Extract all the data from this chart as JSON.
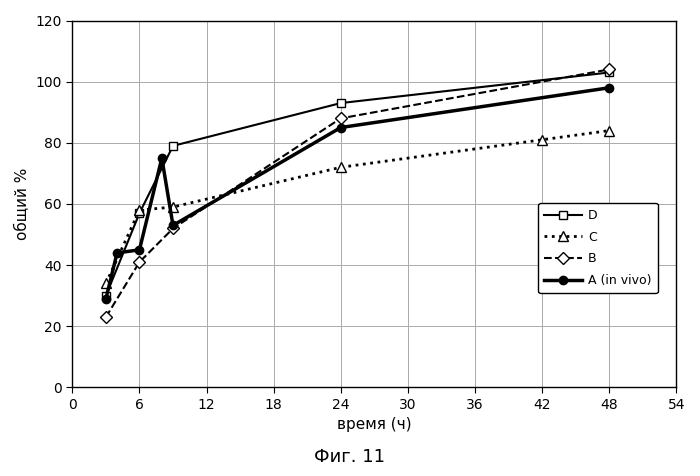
{
  "title": "Фиг. 11",
  "xlabel": "время (ч)",
  "ylabel": "общий %",
  "xlim": [
    0,
    54
  ],
  "ylim": [
    0,
    120
  ],
  "xticks": [
    0,
    6,
    12,
    18,
    24,
    30,
    36,
    42,
    48,
    54
  ],
  "yticks": [
    0,
    20,
    40,
    60,
    80,
    100,
    120
  ],
  "series": {
    "D": {
      "x": [
        3,
        6,
        9,
        24,
        48
      ],
      "y": [
        30,
        57,
        79,
        93,
        103
      ],
      "color": "#000000",
      "linestyle": "-",
      "linewidth": 1.5,
      "marker": "s",
      "markersize": 6,
      "markerfacecolor": "white",
      "markeredgecolor": "#000000"
    },
    "C": {
      "x": [
        3,
        6,
        9,
        24,
        42,
        48
      ],
      "y": [
        34,
        58,
        59,
        72,
        81,
        84
      ],
      "color": "#000000",
      "linestyle": ":",
      "linewidth": 2.0,
      "marker": "^",
      "markersize": 7,
      "markerfacecolor": "white",
      "markeredgecolor": "#000000"
    },
    "B": {
      "x": [
        3,
        6,
        9,
        24,
        48
      ],
      "y": [
        23,
        41,
        52,
        88,
        104
      ],
      "color": "#000000",
      "linestyle": "--",
      "linewidth": 1.5,
      "marker": "D",
      "markersize": 6,
      "markerfacecolor": "white",
      "markeredgecolor": "#000000"
    },
    "A (in vivo)": {
      "x": [
        3,
        4,
        6,
        8,
        9,
        24,
        48
      ],
      "y": [
        29,
        44,
        45,
        75,
        53,
        85,
        98
      ],
      "color": "#000000",
      "linestyle": "-",
      "linewidth": 2.5,
      "marker": "o",
      "markersize": 6,
      "markerfacecolor": "#000000",
      "markeredgecolor": "#000000"
    }
  },
  "legend_order": [
    "D",
    "C",
    "B",
    "A (in vivo)"
  ],
  "background_color": "#ffffff",
  "grid_color": "#aaaaaa"
}
